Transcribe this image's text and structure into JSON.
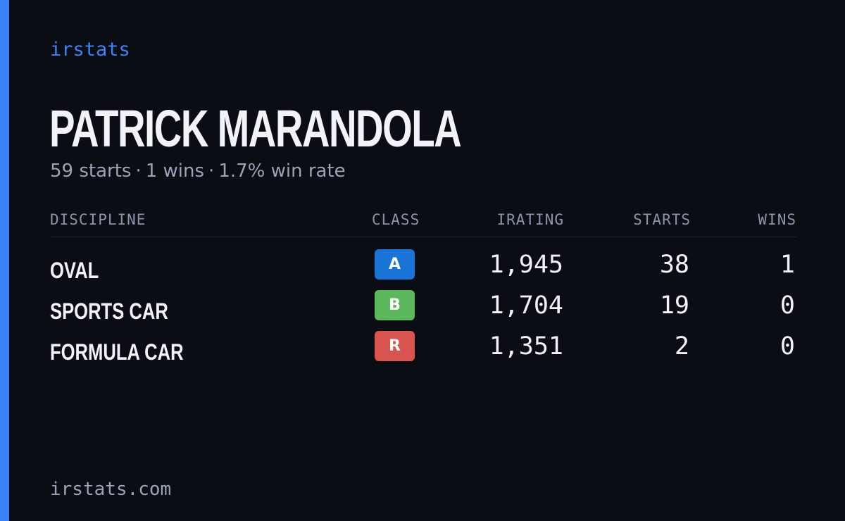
{
  "brand": "irstats",
  "player": {
    "name": "PATRICK MARANDOLA",
    "starts_text": "59 starts",
    "wins_text": "1 wins",
    "win_rate_text": "1.7% win rate",
    "separator": "·"
  },
  "table": {
    "headers": {
      "discipline": "DISCIPLINE",
      "class": "CLASS",
      "irating": "IRATING",
      "starts": "STARTS",
      "wins": "WINS"
    },
    "rows": [
      {
        "discipline": "OVAL",
        "class": "A",
        "class_color": "#1a74d8",
        "irating": "1,945",
        "starts": "38",
        "wins": "1"
      },
      {
        "discipline": "SPORTS CAR",
        "class": "B",
        "class_color": "#5cb85c",
        "irating": "1,704",
        "starts": "19",
        "wins": "0"
      },
      {
        "discipline": "FORMULA CAR",
        "class": "R",
        "class_color": "#d9534f",
        "irating": "1,351",
        "starts": "2",
        "wins": "0"
      }
    ]
  },
  "footer": "irstats.com",
  "colors": {
    "accent": "#3b82f6",
    "background": "#0a0d14"
  }
}
